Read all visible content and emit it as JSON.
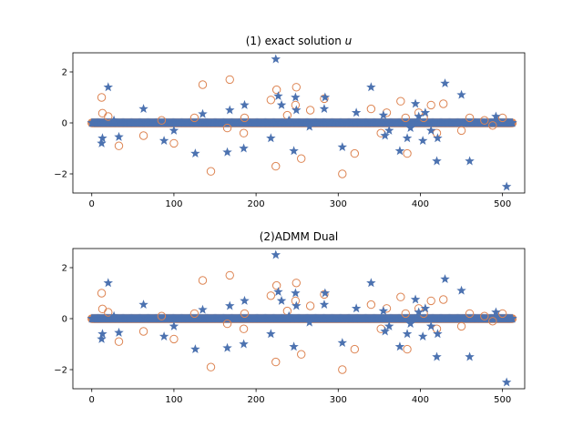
{
  "figure": {
    "background": "#ffffff"
  },
  "chart_data": [
    {
      "type": "scatter",
      "title_prefix": "(1) exact solution ",
      "title_var": "u",
      "xlabel": "",
      "ylabel": "",
      "xlim": [
        -23,
        527
      ],
      "ylim": [
        -2.75,
        2.75
      ],
      "xticks": [
        0,
        100,
        200,
        300,
        400,
        500
      ],
      "yticks": [
        -2,
        0,
        2
      ],
      "grid": false,
      "colors": {
        "orange": "#dd8452",
        "blue": "#4c72b0"
      },
      "zero_band": {
        "x_start": 0,
        "x_end": 512,
        "y": 0,
        "color": "#4c72b0"
      },
      "series_orange": [
        [
          12,
          1.0
        ],
        [
          13,
          0.38
        ],
        [
          20,
          0.25
        ],
        [
          33,
          -0.9
        ],
        [
          63,
          -0.5
        ],
        [
          85,
          0.1
        ],
        [
          100,
          -0.8
        ],
        [
          125,
          0.2
        ],
        [
          135,
          1.5
        ],
        [
          145,
          -1.9
        ],
        [
          165,
          -0.2
        ],
        [
          168,
          1.7
        ],
        [
          185,
          -0.4
        ],
        [
          186,
          0.2
        ],
        [
          218,
          0.9
        ],
        [
          225,
          1.3
        ],
        [
          224,
          -1.7
        ],
        [
          238,
          0.3
        ],
        [
          249,
          1.4
        ],
        [
          248,
          0.7
        ],
        [
          255,
          -1.4
        ],
        [
          266,
          0.5
        ],
        [
          283,
          0.95
        ],
        [
          305,
          -2.0
        ],
        [
          320,
          -1.2
        ],
        [
          340,
          0.55
        ],
        [
          352,
          -0.4
        ],
        [
          359,
          0.4
        ],
        [
          376,
          0.85
        ],
        [
          384,
          -1.2
        ],
        [
          382,
          0.2
        ],
        [
          398,
          0.4
        ],
        [
          404,
          0.2
        ],
        [
          413,
          0.7
        ],
        [
          420,
          -0.4
        ],
        [
          428,
          0.75
        ],
        [
          450,
          -0.3
        ],
        [
          460,
          0.2
        ],
        [
          478,
          0.1
        ],
        [
          488,
          -0.1
        ],
        [
          500,
          0.2
        ]
      ],
      "series_blue": [
        [
          12,
          -0.8
        ],
        [
          13,
          -0.6
        ],
        [
          20,
          1.4
        ],
        [
          27,
          0.1
        ],
        [
          33,
          -0.55
        ],
        [
          63,
          0.55
        ],
        [
          88,
          -0.7
        ],
        [
          100,
          -0.3
        ],
        [
          126,
          -1.2
        ],
        [
          135,
          0.35
        ],
        [
          165,
          -1.15
        ],
        [
          168,
          0.5
        ],
        [
          185,
          -1.0
        ],
        [
          186,
          0.7
        ],
        [
          218,
          -0.6
        ],
        [
          224,
          2.5
        ],
        [
          227,
          1.05
        ],
        [
          231,
          0.7
        ],
        [
          240,
          0.1
        ],
        [
          246,
          -1.1
        ],
        [
          248,
          1.0
        ],
        [
          249,
          0.5
        ],
        [
          265,
          -0.15
        ],
        [
          283,
          0.55
        ],
        [
          284,
          1.0
        ],
        [
          305,
          -0.95
        ],
        [
          322,
          0.4
        ],
        [
          340,
          1.4
        ],
        [
          355,
          0.3
        ],
        [
          357,
          -0.5
        ],
        [
          362,
          -0.3
        ],
        [
          375,
          -1.1
        ],
        [
          384,
          -0.6
        ],
        [
          388,
          -0.2
        ],
        [
          394,
          0.75
        ],
        [
          398,
          0.25
        ],
        [
          403,
          -0.7
        ],
        [
          406,
          0.4
        ],
        [
          413,
          -0.3
        ],
        [
          420,
          -1.5
        ],
        [
          421,
          -0.6
        ],
        [
          430,
          1.55
        ],
        [
          450,
          1.1
        ],
        [
          460,
          -1.5
        ],
        [
          492,
          0.25
        ],
        [
          505,
          -2.5
        ]
      ]
    },
    {
      "type": "scatter",
      "title_prefix": "(2)ADMM Dual",
      "title_var": "",
      "xlabel": "",
      "ylabel": "",
      "xlim": [
        -23,
        527
      ],
      "ylim": [
        -2.75,
        2.75
      ],
      "xticks": [
        0,
        100,
        200,
        300,
        400,
        500
      ],
      "yticks": [
        -2,
        0,
        2
      ],
      "grid": false,
      "colors": {
        "orange": "#dd8452",
        "blue": "#4c72b0"
      },
      "zero_band": {
        "x_start": 0,
        "x_end": 512,
        "y": 0,
        "color": "#4c72b0"
      },
      "series_orange": [
        [
          12,
          1.0
        ],
        [
          13,
          0.38
        ],
        [
          20,
          0.25
        ],
        [
          33,
          -0.9
        ],
        [
          63,
          -0.5
        ],
        [
          85,
          0.1
        ],
        [
          100,
          -0.8
        ],
        [
          125,
          0.2
        ],
        [
          135,
          1.5
        ],
        [
          145,
          -1.9
        ],
        [
          165,
          -0.2
        ],
        [
          168,
          1.7
        ],
        [
          185,
          -0.4
        ],
        [
          186,
          0.2
        ],
        [
          218,
          0.9
        ],
        [
          225,
          1.3
        ],
        [
          224,
          -1.7
        ],
        [
          238,
          0.3
        ],
        [
          249,
          1.4
        ],
        [
          248,
          0.7
        ],
        [
          255,
          -1.4
        ],
        [
          266,
          0.5
        ],
        [
          283,
          0.95
        ],
        [
          305,
          -2.0
        ],
        [
          320,
          -1.2
        ],
        [
          340,
          0.55
        ],
        [
          352,
          -0.4
        ],
        [
          359,
          0.4
        ],
        [
          376,
          0.85
        ],
        [
          384,
          -1.2
        ],
        [
          382,
          0.2
        ],
        [
          398,
          0.4
        ],
        [
          404,
          0.2
        ],
        [
          413,
          0.7
        ],
        [
          420,
          -0.4
        ],
        [
          428,
          0.75
        ],
        [
          450,
          -0.3
        ],
        [
          460,
          0.2
        ],
        [
          478,
          0.1
        ],
        [
          488,
          -0.1
        ],
        [
          500,
          0.2
        ]
      ],
      "series_blue": [
        [
          12,
          -0.8
        ],
        [
          13,
          -0.6
        ],
        [
          20,
          1.4
        ],
        [
          27,
          0.1
        ],
        [
          33,
          -0.55
        ],
        [
          63,
          0.55
        ],
        [
          88,
          -0.7
        ],
        [
          100,
          -0.3
        ],
        [
          126,
          -1.2
        ],
        [
          135,
          0.35
        ],
        [
          165,
          -1.15
        ],
        [
          168,
          0.5
        ],
        [
          185,
          -1.0
        ],
        [
          186,
          0.7
        ],
        [
          218,
          -0.6
        ],
        [
          224,
          2.5
        ],
        [
          227,
          1.05
        ],
        [
          231,
          0.7
        ],
        [
          240,
          0.1
        ],
        [
          246,
          -1.1
        ],
        [
          248,
          1.0
        ],
        [
          249,
          0.5
        ],
        [
          265,
          -0.15
        ],
        [
          283,
          0.55
        ],
        [
          284,
          1.0
        ],
        [
          305,
          -0.95
        ],
        [
          322,
          0.4
        ],
        [
          340,
          1.4
        ],
        [
          355,
          0.3
        ],
        [
          357,
          -0.5
        ],
        [
          362,
          -0.3
        ],
        [
          375,
          -1.1
        ],
        [
          384,
          -0.6
        ],
        [
          388,
          -0.2
        ],
        [
          394,
          0.75
        ],
        [
          398,
          0.25
        ],
        [
          403,
          -0.7
        ],
        [
          406,
          0.4
        ],
        [
          413,
          -0.3
        ],
        [
          420,
          -1.5
        ],
        [
          421,
          -0.6
        ],
        [
          430,
          1.55
        ],
        [
          450,
          1.1
        ],
        [
          460,
          -1.5
        ],
        [
          492,
          0.25
        ],
        [
          505,
          -2.5
        ]
      ]
    }
  ]
}
